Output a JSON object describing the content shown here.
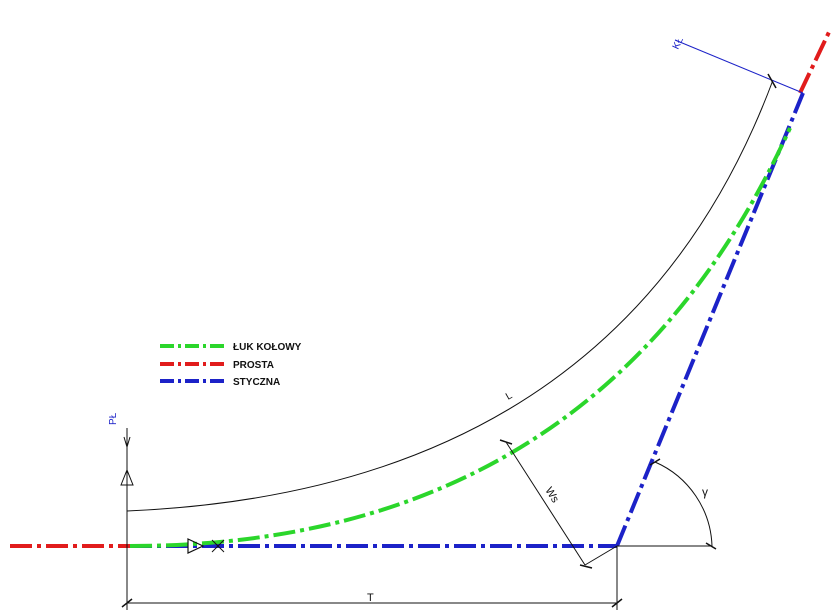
{
  "legend": {
    "items": [
      {
        "label": "ŁUK KOŁOWY",
        "color": "#2bd62b"
      },
      {
        "label": "PROSTA",
        "color": "#e11c1c"
      },
      {
        "label": "STYCZNA",
        "color": "#1c22c8"
      }
    ]
  },
  "labels": {
    "pl": "PŁ",
    "kl": "KŁ",
    "l": "L",
    "ws": "Ws",
    "gamma": "γ",
    "t": "T"
  },
  "colors": {
    "arc": "#2bd62b",
    "line": "#e11c1c",
    "tangent": "#1c22c8",
    "dimension": "#111111",
    "label_blue": "#1c22c8"
  }
}
